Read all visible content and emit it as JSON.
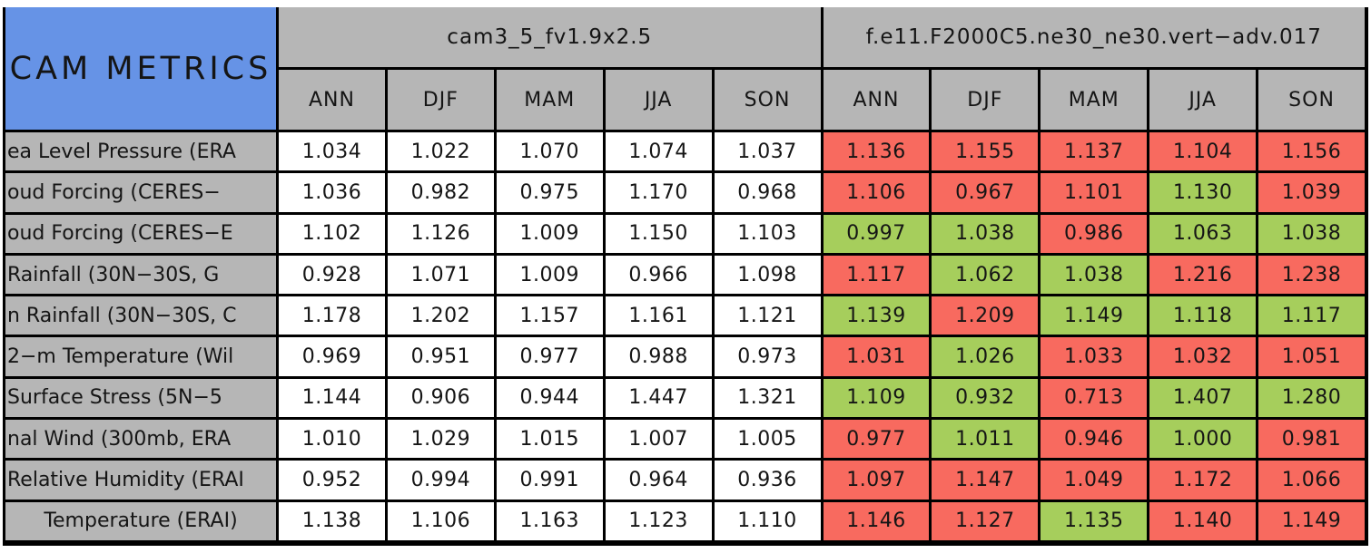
{
  "colors": {
    "blue": "#6693E6",
    "gray": "#B6B6B6",
    "red": "#F86A5F",
    "green": "#A6CE5C",
    "white": "#FFFFFF",
    "border": "#000000"
  },
  "chart_data": {
    "type": "table",
    "title": "CAM METRICS",
    "corner_label": "CAM METRICS",
    "column_groups": [
      {
        "name": "cam3_5_fv1.9x2.5"
      },
      {
        "name": "f.e11.F2000C5.ne30_ne30.vert−adv.017"
      }
    ],
    "seasons": [
      "ANN",
      "DJF",
      "MAM",
      "JJA",
      "SON"
    ],
    "legend_hint": "group2 cells colored red or green vs reference",
    "rows": [
      {
        "label": "ea Level Pressure (ERA",
        "align": "left",
        "g1": [
          "1.034",
          "1.022",
          "1.070",
          "1.074",
          "1.037"
        ],
        "g2": [
          "1.136",
          "1.155",
          "1.137",
          "1.104",
          "1.156"
        ],
        "g2_colors": [
          "red",
          "red",
          "red",
          "red",
          "red"
        ]
      },
      {
        "label": "oud Forcing (CERES−",
        "align": "left",
        "g1": [
          "1.036",
          "0.982",
          "0.975",
          "1.170",
          "0.968"
        ],
        "g2": [
          "1.106",
          "0.967",
          "1.101",
          "1.130",
          "1.039"
        ],
        "g2_colors": [
          "red",
          "red",
          "red",
          "green",
          "red"
        ]
      },
      {
        "label": "oud Forcing (CERES−E",
        "align": "left",
        "g1": [
          "1.102",
          "1.126",
          "1.009",
          "1.150",
          "1.103"
        ],
        "g2": [
          "0.997",
          "1.038",
          "0.986",
          "1.063",
          "1.038"
        ],
        "g2_colors": [
          "green",
          "green",
          "red",
          "green",
          "green"
        ]
      },
      {
        "label": " Rainfall (30N−30S, G",
        "align": "left",
        "g1": [
          "0.928",
          "1.071",
          "1.009",
          "0.966",
          "1.098"
        ],
        "g2": [
          "1.117",
          "1.062",
          "1.038",
          "1.216",
          "1.238"
        ],
        "g2_colors": [
          "red",
          "green",
          "green",
          "red",
          "red"
        ]
      },
      {
        "label": "n Rainfall (30N−30S, C",
        "align": "left",
        "g1": [
          "1.178",
          "1.202",
          "1.157",
          "1.161",
          "1.121"
        ],
        "g2": [
          "1.139",
          "1.209",
          "1.149",
          "1.118",
          "1.117"
        ],
        "g2_colors": [
          "green",
          "red",
          "green",
          "green",
          "green"
        ]
      },
      {
        "label": "2−m Temperature (Wil",
        "align": "left",
        "g1": [
          "0.969",
          "0.951",
          "0.977",
          "0.988",
          "0.973"
        ],
        "g2": [
          "1.031",
          "1.026",
          "1.033",
          "1.032",
          "1.051"
        ],
        "g2_colors": [
          "red",
          "green",
          "red",
          "red",
          "red"
        ]
      },
      {
        "label": " Surface Stress (5N−5",
        "align": "left",
        "g1": [
          "1.144",
          "0.906",
          "0.944",
          "1.447",
          "1.321"
        ],
        "g2": [
          "1.109",
          "0.932",
          "0.713",
          "1.407",
          "1.280"
        ],
        "g2_colors": [
          "green",
          "green",
          "red",
          "green",
          "green"
        ]
      },
      {
        "label": "nal Wind (300mb, ERA",
        "align": "left",
        "g1": [
          "1.010",
          "1.029",
          "1.015",
          "1.007",
          "1.005"
        ],
        "g2": [
          "0.977",
          "1.011",
          "0.946",
          "1.000",
          "0.981"
        ],
        "g2_colors": [
          "red",
          "green",
          "red",
          "green",
          "red"
        ]
      },
      {
        "label": "Relative Humidity (ERAI",
        "align": "left",
        "g1": [
          "0.952",
          "0.994",
          "0.991",
          "0.964",
          "0.936"
        ],
        "g2": [
          "1.097",
          "1.147",
          "1.049",
          "1.172",
          "1.066"
        ],
        "g2_colors": [
          "red",
          "red",
          "red",
          "red",
          "red"
        ]
      },
      {
        "label": "Temperature (ERAI)",
        "align": "center",
        "g1": [
          "1.138",
          "1.106",
          "1.163",
          "1.123",
          "1.110"
        ],
        "g2": [
          "1.146",
          "1.127",
          "1.135",
          "1.140",
          "1.149"
        ],
        "g2_colors": [
          "red",
          "red",
          "green",
          "red",
          "red"
        ]
      }
    ]
  }
}
